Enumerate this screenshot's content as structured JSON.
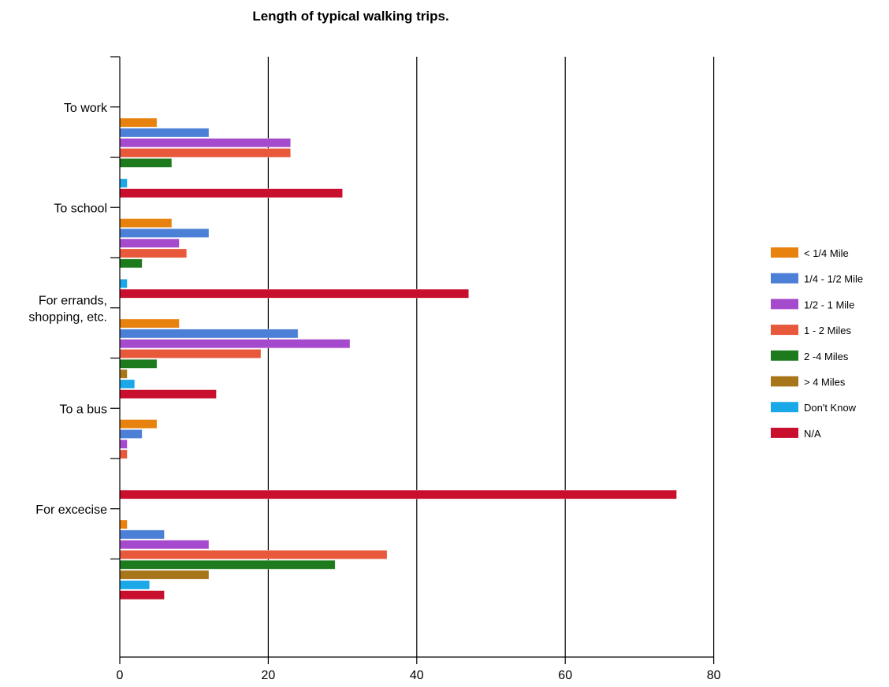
{
  "chart_data": {
    "type": "bar",
    "orientation": "horizontal",
    "title": "Length of typical walking trips.",
    "xlabel": "",
    "ylabel": "",
    "xlim": [
      0,
      80
    ],
    "x_ticks": [
      "0",
      "20",
      "40",
      "60",
      "80"
    ],
    "grid": "vertical gridlines at 20, 40, 60, 80",
    "legend_position": "right",
    "categories": [
      "To work",
      "To school",
      "For errands,\nshopping, etc.",
      "To a bus",
      "For excecise"
    ],
    "series": [
      {
        "name": "< 1/4 Mile",
        "color": "#E8820F",
        "values": [
          5,
          7,
          8,
          5,
          1
        ]
      },
      {
        "name": "1/4 - 1/2 Mile",
        "color": "#4C7FD6",
        "values": [
          12,
          12,
          24,
          3,
          6
        ]
      },
      {
        "name": "1/2 - 1 Mile",
        "color": "#A64ACD",
        "values": [
          23,
          8,
          31,
          1,
          12
        ]
      },
      {
        "name": "1 - 2 Miles",
        "color": "#E8583B",
        "values": [
          23,
          9,
          19,
          1,
          36
        ]
      },
      {
        "name": "2 -4 Miles",
        "color": "#1D7A1D",
        "values": [
          7,
          3,
          5,
          0,
          29
        ]
      },
      {
        "name": "> 4 Miles",
        "color": "#A8761A",
        "values": [
          0,
          0,
          1,
          0,
          12
        ]
      },
      {
        "name": "Don't Know",
        "color": "#1BA8E8",
        "values": [
          1,
          1,
          2,
          0,
          4
        ]
      },
      {
        "name": "N/A",
        "color": "#C8102E",
        "values": [
          30,
          47,
          13,
          75,
          6
        ]
      }
    ]
  }
}
